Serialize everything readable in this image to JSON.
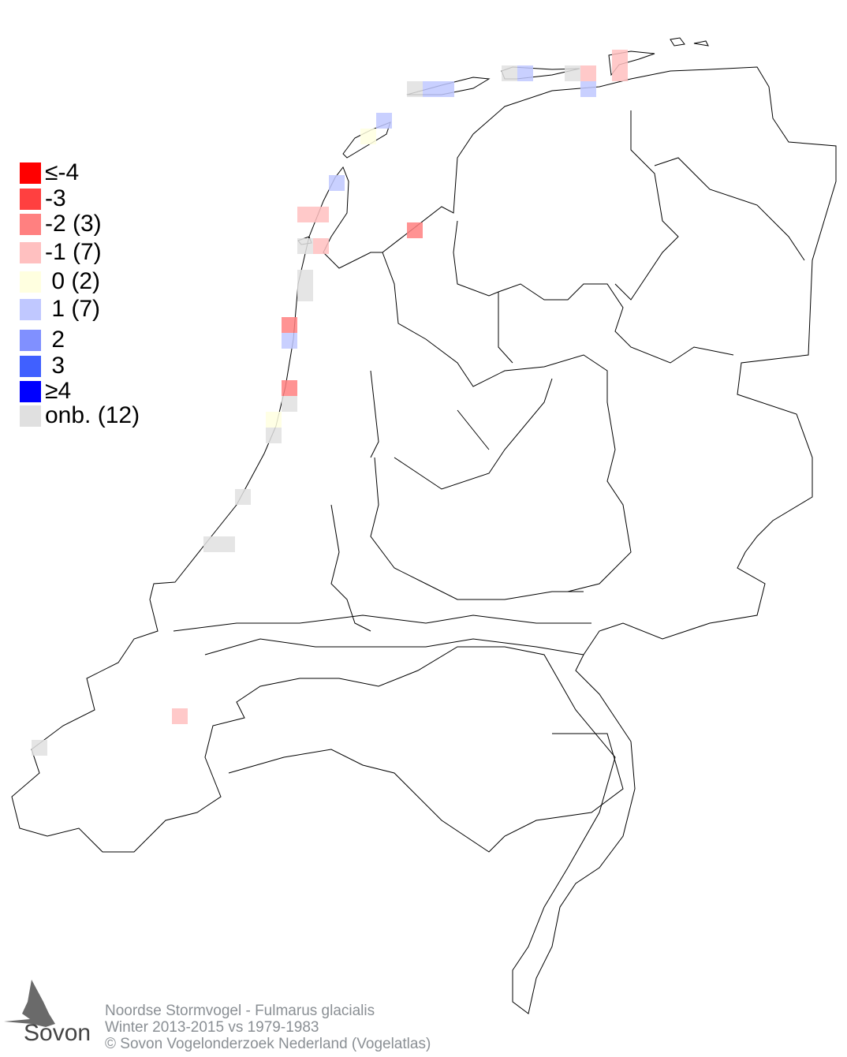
{
  "legend": [
    {
      "label": "≤-4",
      "color": "#ff0000"
    },
    {
      "label": "-3",
      "color": "#ff4040"
    },
    {
      "label": "-2 (3)",
      "color": "#ff8080"
    },
    {
      "label": "-1 (7)",
      "color": "#ffc0c0"
    },
    {
      "label": " 0 (2)",
      "color": "#ffffe0"
    },
    {
      "label": " 1 (7)",
      "color": "#c0c8ff"
    },
    {
      "label": " 2",
      "color": "#8090ff"
    },
    {
      "label": " 3",
      "color": "#4060ff"
    },
    {
      "label": "≥4",
      "color": "#0000ff"
    },
    {
      "label": "onb. (12)",
      "color": "#e0e0e0"
    }
  ],
  "map": {
    "region": "Netherlands",
    "cell_values": [
      "onb.",
      "1",
      "1",
      "onb.",
      "1",
      "onb.",
      "-1",
      "1",
      "-1",
      "-1",
      "1",
      "0",
      "1",
      "-1",
      "-1",
      "onb.",
      "-1",
      "-2",
      "onb.",
      "onb.",
      "-2",
      "1",
      "-2",
      "onb.",
      "0",
      "onb.",
      "onb.",
      "onb.",
      "onb.",
      "-1",
      "onb."
    ]
  },
  "footer": {
    "line1": "Noordse Stormvogel - Fulmarus glacialis",
    "line2": "Winter 2013-2015 vs 1979-1983",
    "line3": "© Sovon Vogelonderzoek Nederland (Vogelatlas)"
  },
  "logo": {
    "text": "Sovon"
  }
}
